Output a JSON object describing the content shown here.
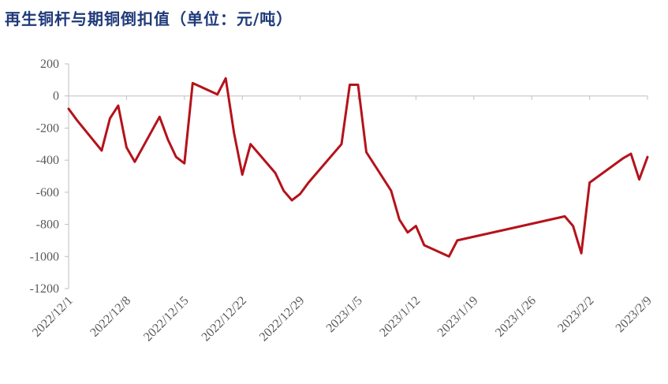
{
  "chart_data": {
    "type": "line",
    "title": "再生铜杆与期铜倒扣值（单位：元/吨）",
    "xlabel": "",
    "ylabel": "",
    "ylim": [
      -1200,
      200
    ],
    "yticks": [
      200,
      0,
      -200,
      -400,
      -600,
      -800,
      -1000,
      -1200
    ],
    "xlim": [
      "2022-12-01",
      "2023-02-09"
    ],
    "xtick_labels": [
      "2022/12/1",
      "2022/12/8",
      "2022/12/15",
      "2022/12/22",
      "2022/12/29",
      "2023/1/5",
      "2023/1/12",
      "2023/1/19",
      "2023/1/26",
      "2023/2/2",
      "2023/2/9"
    ],
    "xtick_dates": [
      "2022-12-01",
      "2022-12-08",
      "2022-12-15",
      "2022-12-22",
      "2022-12-29",
      "2023-01-05",
      "2023-01-12",
      "2023-01-19",
      "2023-01-26",
      "2023-02-02",
      "2023-02-09"
    ],
    "grid": false,
    "line_color": "#b5121b",
    "series": [
      {
        "name": "",
        "x": [
          "2022-12-01",
          "2022-12-02",
          "2022-12-05",
          "2022-12-06",
          "2022-12-07",
          "2022-12-08",
          "2022-12-09",
          "2022-12-12",
          "2022-12-13",
          "2022-12-14",
          "2022-12-15",
          "2022-12-16",
          "2022-12-19",
          "2022-12-20",
          "2022-12-21",
          "2022-12-22",
          "2022-12-23",
          "2022-12-26",
          "2022-12-27",
          "2022-12-28",
          "2022-12-29",
          "2022-12-30",
          "2023-01-03",
          "2023-01-04",
          "2023-01-05",
          "2023-01-06",
          "2023-01-09",
          "2023-01-10",
          "2023-01-11",
          "2023-01-12",
          "2023-01-13",
          "2023-01-16",
          "2023-01-17",
          "2023-01-30",
          "2023-01-31",
          "2023-02-01",
          "2023-02-02",
          "2023-02-06",
          "2023-02-07",
          "2023-02-08",
          "2023-02-09"
        ],
        "values": [
          -80,
          -150,
          -340,
          -140,
          -60,
          -320,
          -410,
          -130,
          -270,
          -380,
          -420,
          80,
          10,
          110,
          -230,
          -490,
          -300,
          -480,
          -590,
          -650,
          -610,
          -540,
          -300,
          70,
          70,
          -350,
          -590,
          -770,
          -850,
          -810,
          -930,
          -1000,
          -900,
          -750,
          -810,
          -980,
          -540,
          -390,
          -360,
          -520,
          -380
        ]
      }
    ]
  }
}
